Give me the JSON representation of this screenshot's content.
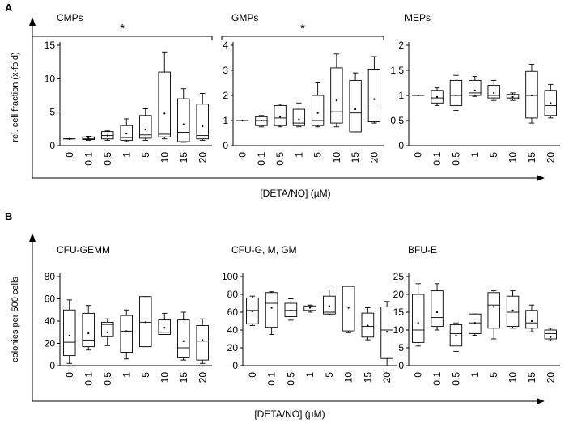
{
  "figure": {
    "panel_a_label": "A",
    "panel_b_label": "B",
    "panel_a_ylabel": "rel. cell fraction (x-fold)",
    "panel_a_xlabel": "[DETA/NO] (µM)",
    "panel_b_ylabel": "colonies per 500 cells",
    "panel_b_xlabel": "[DETA/NO] (µM)"
  },
  "chart_data": [
    {
      "type": "box",
      "title": "CMPs",
      "categories": [
        "0",
        "0.1",
        "0.5",
        "1",
        "5",
        "10",
        "15",
        "20"
      ],
      "ylim": [
        0,
        15
      ],
      "yticks": [
        0,
        5,
        10,
        15
      ],
      "significance": "*",
      "boxes": [
        {
          "min": 1.0,
          "q1": 1.0,
          "median": 1.0,
          "q3": 1.0,
          "max": 1.0,
          "mean": 1.0
        },
        {
          "min": 0.8,
          "q1": 0.9,
          "median": 1.0,
          "q3": 1.3,
          "max": 1.4,
          "mean": 1.1
        },
        {
          "min": 0.8,
          "q1": 1.0,
          "median": 1.5,
          "q3": 2.1,
          "max": 2.2,
          "mean": 1.5
        },
        {
          "min": 0.6,
          "q1": 0.8,
          "median": 1.2,
          "q3": 3.0,
          "max": 4.0,
          "mean": 1.8
        },
        {
          "min": 0.8,
          "q1": 1.1,
          "median": 1.6,
          "q3": 4.5,
          "max": 5.5,
          "mean": 2.4
        },
        {
          "min": 1.0,
          "q1": 1.3,
          "median": 1.7,
          "q3": 11.0,
          "max": 14.0,
          "mean": 4.8
        },
        {
          "min": 0.5,
          "q1": 0.6,
          "median": 2.0,
          "q3": 7.0,
          "max": 8.5,
          "mean": 3.2
        },
        {
          "min": 0.8,
          "q1": 1.0,
          "median": 1.5,
          "q3": 6.2,
          "max": 7.8,
          "mean": 2.9
        }
      ]
    },
    {
      "type": "box",
      "title": "GMPs",
      "categories": [
        "0",
        "0.1",
        "0.5",
        "1",
        "5",
        "10",
        "15",
        "20"
      ],
      "ylim": [
        0,
        4
      ],
      "yticks": [
        0,
        1,
        2,
        3,
        4
      ],
      "significance": "*",
      "boxes": [
        {
          "min": 1.0,
          "q1": 1.0,
          "median": 1.0,
          "q3": 1.0,
          "max": 1.0,
          "mean": 1.0
        },
        {
          "min": 0.75,
          "q1": 0.8,
          "median": 1.0,
          "q3": 1.15,
          "max": 1.2,
          "mean": 1.0
        },
        {
          "min": 0.75,
          "q1": 0.8,
          "median": 1.1,
          "q3": 1.6,
          "max": 1.65,
          "mean": 1.15
        },
        {
          "min": 0.75,
          "q1": 0.8,
          "median": 0.9,
          "q3": 1.45,
          "max": 1.7,
          "mean": 1.05
        },
        {
          "min": 0.75,
          "q1": 0.8,
          "median": 1.0,
          "q3": 2.0,
          "max": 2.5,
          "mean": 1.3
        },
        {
          "min": 0.75,
          "q1": 0.9,
          "median": 1.35,
          "q3": 3.1,
          "max": 3.65,
          "mean": 1.8
        },
        {
          "min": 0.55,
          "q1": 0.55,
          "median": 1.3,
          "q3": 2.6,
          "max": 2.9,
          "mean": 1.45
        },
        {
          "min": 0.9,
          "q1": 0.95,
          "median": 1.5,
          "q3": 3.05,
          "max": 3.55,
          "mean": 1.85
        }
      ]
    },
    {
      "type": "box",
      "title": "MEPs",
      "categories": [
        "0",
        "0.1",
        "0.5",
        "1",
        "5",
        "10",
        "15",
        "20"
      ],
      "ylim": [
        0,
        2
      ],
      "yticks": [
        0,
        0.5,
        1,
        1.5,
        2
      ],
      "significance": "",
      "boxes": [
        {
          "min": 1.0,
          "q1": 1.0,
          "median": 1.0,
          "q3": 1.0,
          "max": 1.0,
          "mean": 1.0
        },
        {
          "min": 0.8,
          "q1": 0.85,
          "median": 0.95,
          "q3": 1.1,
          "max": 1.15,
          "mean": 0.97
        },
        {
          "min": 0.7,
          "q1": 0.8,
          "median": 1.0,
          "q3": 1.3,
          "max": 1.4,
          "mean": 1.0
        },
        {
          "min": 0.98,
          "q1": 1.0,
          "median": 1.05,
          "q3": 1.3,
          "max": 1.38,
          "mean": 1.1
        },
        {
          "min": 0.9,
          "q1": 0.95,
          "median": 1.0,
          "q3": 1.2,
          "max": 1.3,
          "mean": 1.05
        },
        {
          "min": 0.9,
          "q1": 0.93,
          "median": 0.95,
          "q3": 1.02,
          "max": 1.05,
          "mean": 0.97
        },
        {
          "min": 0.45,
          "q1": 0.55,
          "median": 1.0,
          "q3": 1.48,
          "max": 1.62,
          "mean": 1.0
        },
        {
          "min": 0.55,
          "q1": 0.6,
          "median": 0.8,
          "q3": 1.1,
          "max": 1.22,
          "mean": 0.85
        }
      ]
    },
    {
      "type": "box",
      "title": "CFU-GEMM",
      "categories": [
        "0",
        "0.1",
        "0.5",
        "1",
        "5",
        "10",
        "15",
        "20"
      ],
      "ylim": [
        0,
        80
      ],
      "yticks": [
        0,
        20,
        40,
        60,
        80
      ],
      "significance": "",
      "boxes": [
        {
          "min": 2,
          "q1": 9,
          "median": 21,
          "q3": 50,
          "max": 59,
          "mean": 27
        },
        {
          "min": 14,
          "q1": 17,
          "median": 23,
          "q3": 47,
          "max": 54,
          "mean": 29
        },
        {
          "min": 18,
          "q1": 26,
          "median": 37,
          "q3": 39,
          "max": 42,
          "mean": 30
        },
        {
          "min": 6,
          "q1": 12,
          "median": 31,
          "q3": 45,
          "max": 50,
          "mean": 31
        },
        {
          "min": 17,
          "q1": 17,
          "median": 39,
          "q3": 62,
          "max": 62,
          "mean": 39
        },
        {
          "min": 28,
          "q1": 28,
          "median": 30,
          "q3": 41,
          "max": 47,
          "mean": 34
        },
        {
          "min": 5,
          "q1": 7,
          "median": 16,
          "q3": 41,
          "max": 48,
          "mean": 22
        },
        {
          "min": 2,
          "q1": 5,
          "median": 22,
          "q3": 36,
          "max": 42,
          "mean": 23
        }
      ]
    },
    {
      "type": "box",
      "title": "CFU-G, M, GM",
      "categories": [
        "0",
        "0.1",
        "0.5",
        "1",
        "5",
        "10",
        "15",
        "20"
      ],
      "ylim": [
        0,
        100
      ],
      "yticks": [
        0,
        20,
        40,
        60,
        80,
        100
      ],
      "significance": "",
      "boxes": [
        {
          "min": 45,
          "q1": 47,
          "median": 62,
          "q3": 76,
          "max": 78,
          "mean": 61
        },
        {
          "min": 35,
          "q1": 43,
          "median": 70,
          "q3": 82,
          "max": 83,
          "mean": 65
        },
        {
          "min": 51,
          "q1": 55,
          "median": 62,
          "q3": 70,
          "max": 75,
          "mean": 62
        },
        {
          "min": 60,
          "q1": 62,
          "median": 66,
          "q3": 67,
          "max": 68,
          "mean": 65
        },
        {
          "min": 57,
          "q1": 58,
          "median": 60,
          "q3": 78,
          "max": 85,
          "mean": 67
        },
        {
          "min": 37,
          "q1": 39,
          "median": 66,
          "q3": 89,
          "max": 89,
          "mean": 65
        },
        {
          "min": 29,
          "q1": 32,
          "median": 44,
          "q3": 59,
          "max": 65,
          "mean": 45
        },
        {
          "min": 0,
          "q1": 8,
          "median": 40,
          "q3": 66,
          "max": 72,
          "mean": 38
        }
      ]
    },
    {
      "type": "box",
      "title": "BFU-E",
      "categories": [
        "0",
        "0.1",
        "0.5",
        "1",
        "5",
        "10",
        "15",
        "20"
      ],
      "ylim": [
        0,
        25
      ],
      "yticks": [
        0,
        5,
        10,
        15,
        20,
        25
      ],
      "significance": "",
      "boxes": [
        {
          "min": 5.5,
          "q1": 6.5,
          "median": 10,
          "q3": 20,
          "max": 23,
          "mean": 12
        },
        {
          "min": 10,
          "q1": 11,
          "median": 13.5,
          "q3": 21,
          "max": 23,
          "mean": 15
        },
        {
          "min": 4,
          "q1": 5.5,
          "median": 9,
          "q3": 11.5,
          "max": 12,
          "mean": 8.5
        },
        {
          "min": 8.5,
          "q1": 9,
          "median": 12,
          "q3": 14.5,
          "max": 14.5,
          "mean": 12
        },
        {
          "min": 7.5,
          "q1": 10.5,
          "median": 17,
          "q3": 20.5,
          "max": 21,
          "mean": 16.5
        },
        {
          "min": 10.5,
          "q1": 11,
          "median": 15,
          "q3": 19.5,
          "max": 21,
          "mean": 15.5
        },
        {
          "min": 9.5,
          "q1": 10.5,
          "median": 12,
          "q3": 15.5,
          "max": 17,
          "mean": 12.5
        },
        {
          "min": 7,
          "q1": 7.5,
          "median": 9,
          "q3": 10,
          "max": 10.5,
          "mean": 8
        }
      ]
    }
  ]
}
